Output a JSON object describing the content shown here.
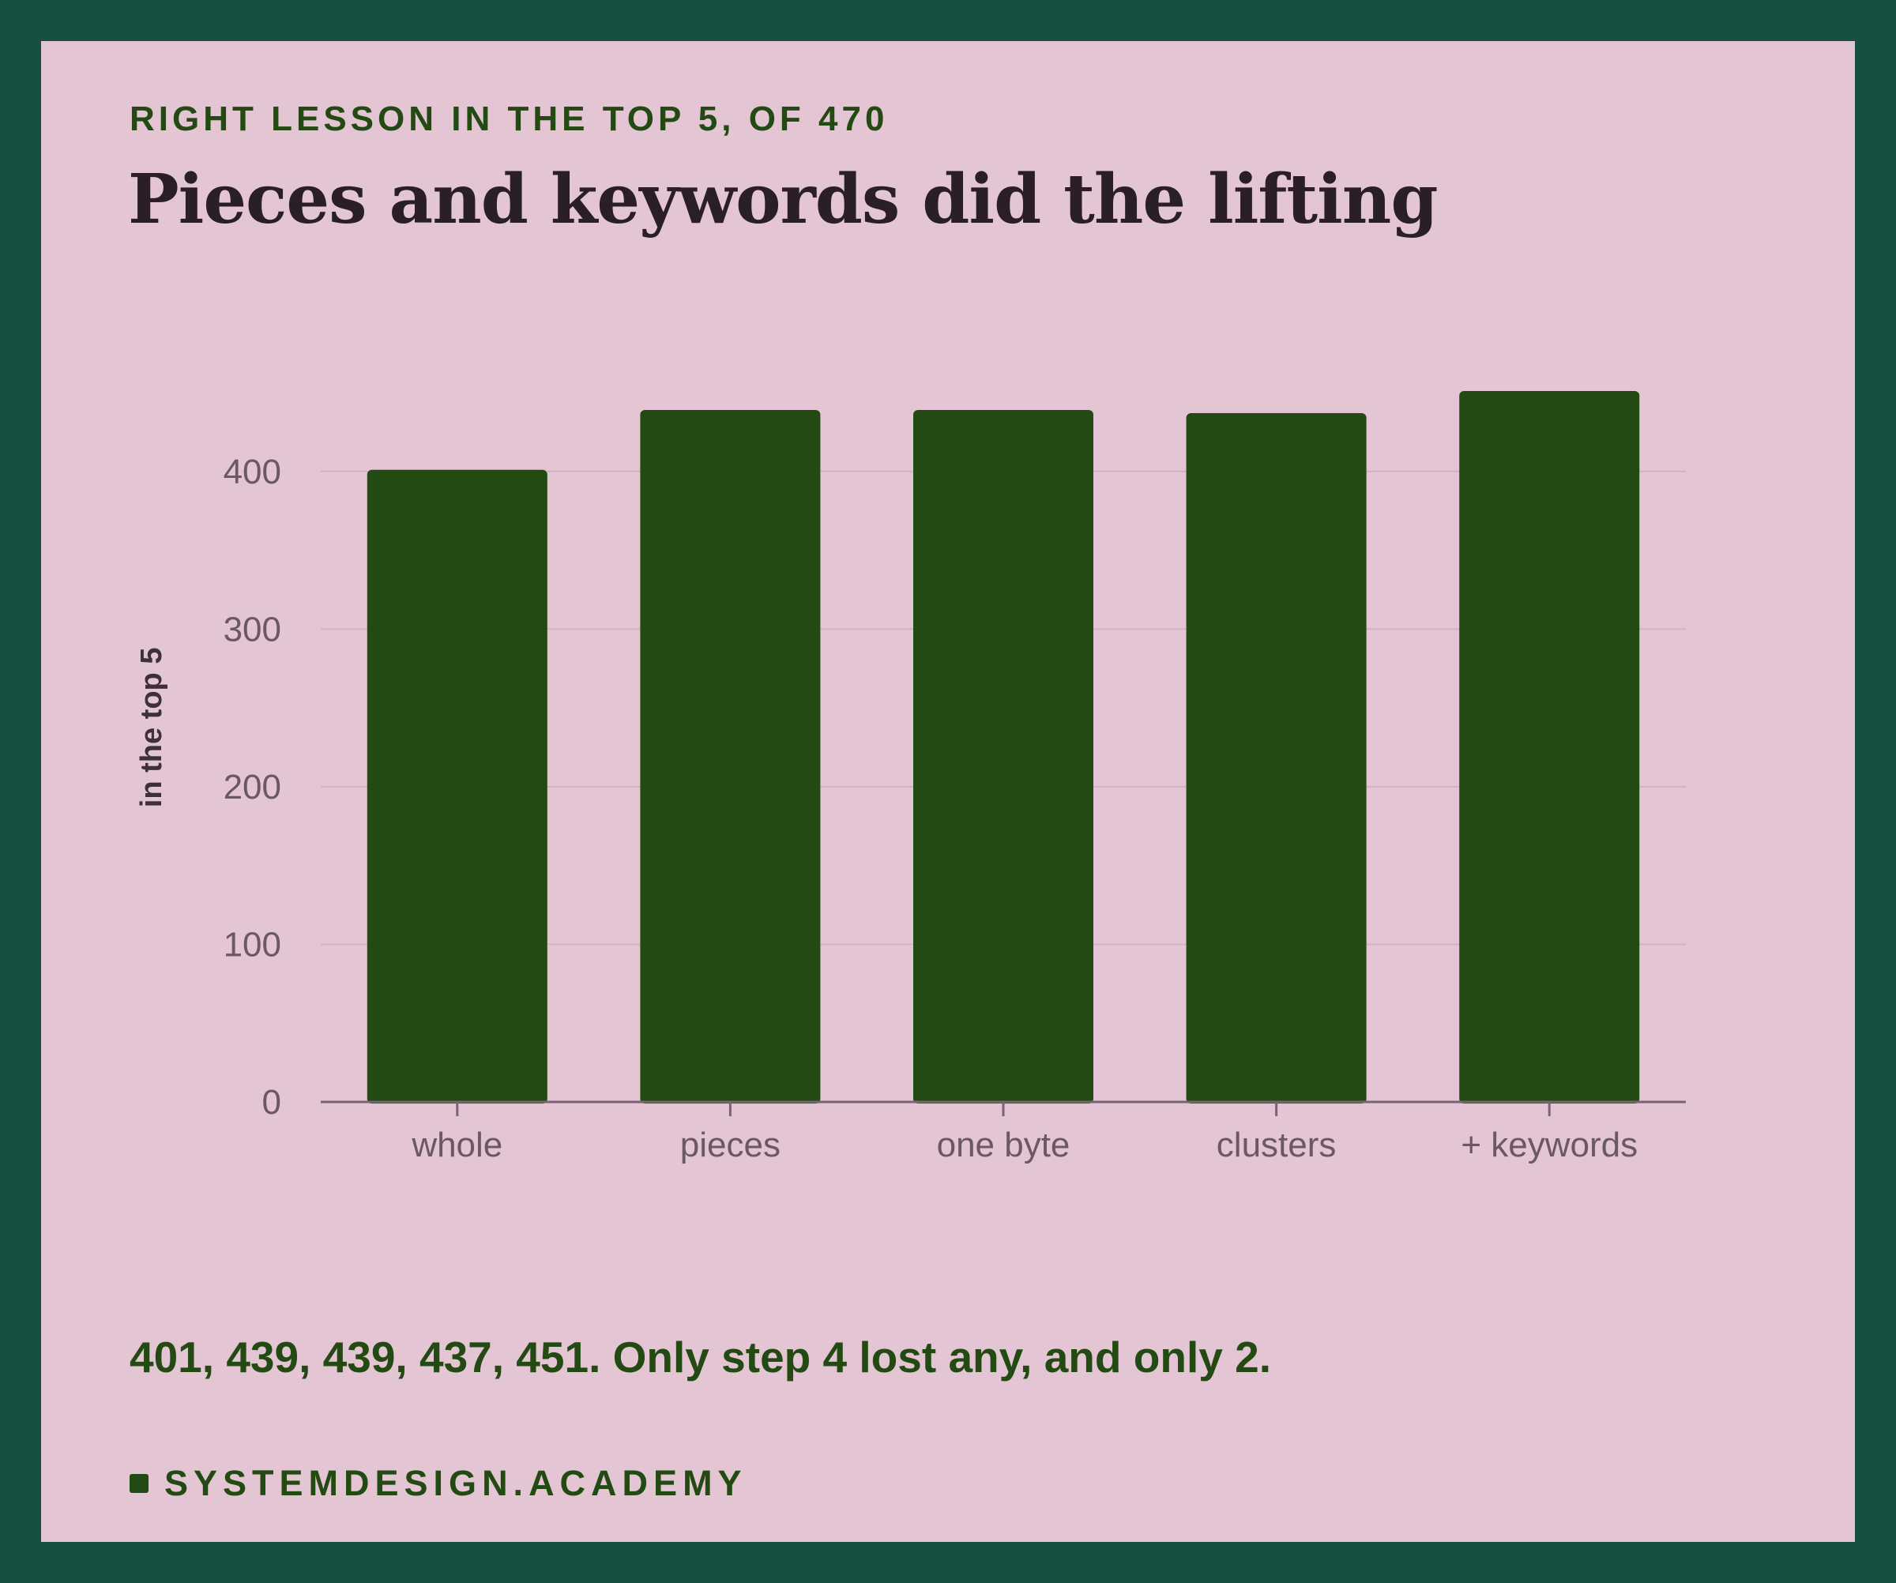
{
  "eyebrow": "RIGHT LESSON IN THE TOP 5, OF 470",
  "title": "Pieces and keywords did the lifting",
  "caption": "401, 439, 439, 437, 451. Only step 4 lost any, and only 2.",
  "footer": {
    "brand": "SYSTEMDESIGN.ACADEMY",
    "mark_icon": "square-icon"
  },
  "colors": {
    "background": "#174f41",
    "card": "#e3c5d3",
    "bar": "#234a12",
    "axis": "#7a6278",
    "grid": "#d2b2c1"
  },
  "chart_data": {
    "type": "bar",
    "title": "Pieces and keywords did the lifting",
    "categories": [
      "whole",
      "pieces",
      "one byte",
      "clusters",
      "+ keywords"
    ],
    "values": [
      401,
      439,
      439,
      437,
      451
    ],
    "xlabel": "",
    "ylabel": "in the top 5",
    "ylim": [
      0,
      451
    ],
    "yticks": [
      0,
      100,
      200,
      300,
      400
    ],
    "grid": true,
    "legend": "none"
  }
}
